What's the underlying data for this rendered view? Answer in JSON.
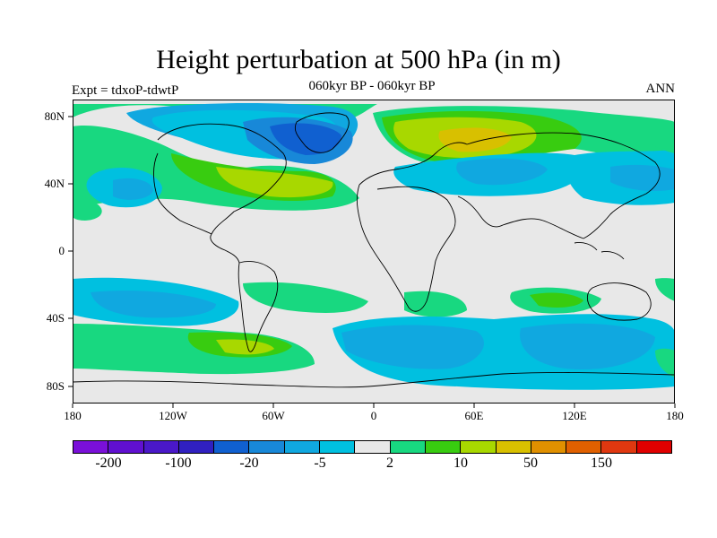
{
  "title": "Height perturbation at 500 hPa (in m)",
  "subtitle": "060kyr BP - 060kyr BP",
  "left_label": "Expt = tdxoP-tdwtP",
  "right_label": "ANN",
  "lat_labels": [
    "80N",
    "40N",
    "0",
    "40S",
    "80S"
  ],
  "lon_labels": [
    "180",
    "120W",
    "60W",
    "0",
    "60E",
    "120E",
    "180"
  ],
  "colorbar": {
    "colors": [
      "#7a10d8",
      "#6010d0",
      "#4a18c8",
      "#3020c0",
      "#1060d0",
      "#1888d8",
      "#10a8e0",
      "#00c0e0",
      "#e8e8e8",
      "#18d880",
      "#38cc10",
      "#a8d800",
      "#d8c000",
      "#e09000",
      "#e06000",
      "#e03810",
      "#e00000"
    ],
    "labels": [
      "-200",
      "-100",
      "-20",
      "-5",
      "2",
      "10",
      "50",
      "150"
    ]
  },
  "chart_data": {
    "type": "heatmap",
    "title": "Height perturbation at 500 hPa (in m)",
    "subtitle": "060kyr BP - 060kyr BP",
    "x_range": [
      -180,
      180
    ],
    "y_range": [
      -90,
      90
    ],
    "x_ticks": [
      "180",
      "120W",
      "60W",
      "0",
      "60E",
      "120E",
      "180"
    ],
    "y_ticks": [
      "80N",
      "40N",
      "0",
      "40S",
      "80S"
    ],
    "colorbar_labels": [
      "-200",
      "-100",
      "-20",
      "-5",
      "2",
      "10",
      "50",
      "150"
    ],
    "regions": [
      {
        "desc": "negative anomaly over Greenland/Arctic",
        "lon": [
          -90,
          0
        ],
        "lat": [
          60,
          85
        ],
        "level": "-20 to -5"
      },
      {
        "desc": "positive anomaly over Scandinavia/Siberia",
        "lon": [
          0,
          80
        ],
        "lat": [
          55,
          85
        ],
        "level": "10 to 50"
      },
      {
        "desc": "positive anomaly over North America/N Atlantic",
        "lon": [
          -120,
          -20
        ],
        "lat": [
          30,
          55
        ],
        "level": "10"
      },
      {
        "desc": "negative anomaly over Southern Ocean",
        "lon": [
          -10,
          180
        ],
        "lat": [
          -80,
          -45
        ],
        "level": "-5"
      },
      {
        "desc": "positive anomaly South Atlantic",
        "lon": [
          -120,
          -40
        ],
        "lat": [
          -70,
          -40
        ],
        "level": "2 to 10"
      }
    ]
  }
}
